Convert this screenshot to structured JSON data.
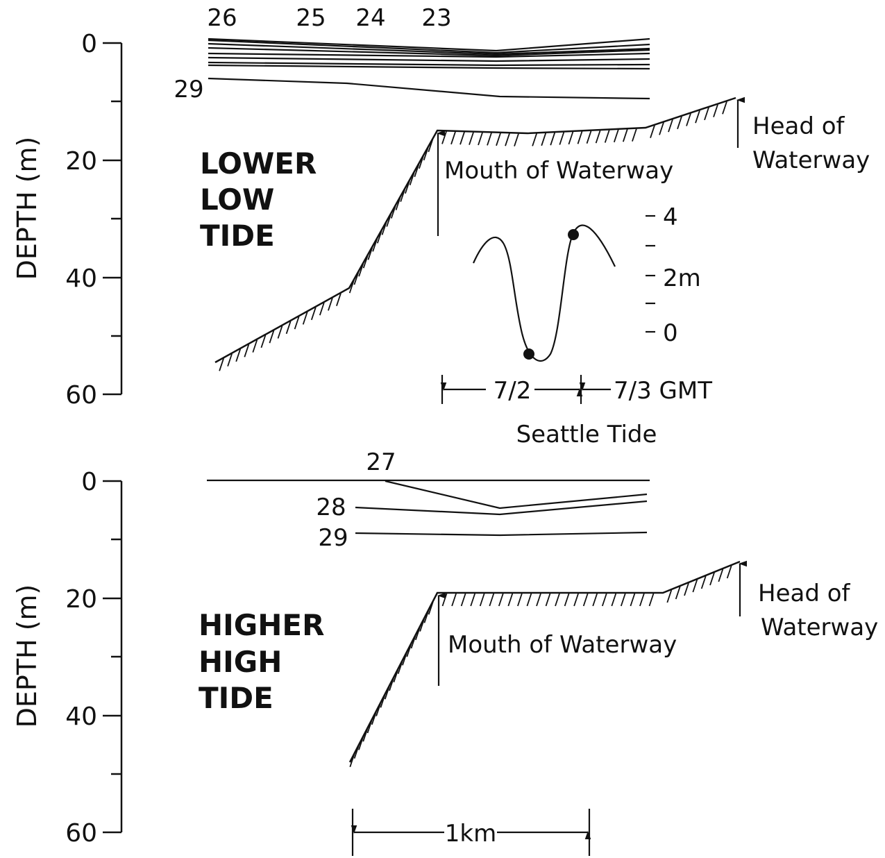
{
  "chart_data": [
    {
      "type": "line",
      "panel_label": "LOWER LOW TIDE",
      "panel_label_lines": [
        "LOWER",
        "LOW",
        "TIDE"
      ],
      "ylabel": "DEPTH (m)",
      "ylim": [
        0,
        60
      ],
      "yticks": [
        0,
        20,
        40,
        60
      ],
      "isohaline_labels": [
        "26",
        "25",
        "24",
        "23",
        "29"
      ],
      "bottom_profile": [
        {
          "x_km": -0.95,
          "depth_m": 54
        },
        {
          "x_km": -0.38,
          "depth_m": 41
        },
        {
          "x_km": 0.0,
          "depth_m": 15
        },
        {
          "x_km": 0.36,
          "depth_m": 15.5
        },
        {
          "x_km": 0.87,
          "depth_m": 14.5
        },
        {
          "x_km": 1.2,
          "depth_m": 9.5
        }
      ],
      "annotations": [
        "Mouth of Waterway",
        "Head of Waterway"
      ],
      "head_label_lines": [
        "Head of",
        "Waterway"
      ]
    },
    {
      "type": "line",
      "panel_label": "HIGHER HIGH TIDE",
      "panel_label_lines": [
        "HIGHER",
        "HIGH",
        "TIDE"
      ],
      "ylabel": "DEPTH (m)",
      "ylim": [
        0,
        60
      ],
      "yticks": [
        0,
        20,
        40,
        60
      ],
      "isohaline_labels": [
        "27",
        "28",
        "29"
      ],
      "bottom_profile": [
        {
          "x_km": -0.38,
          "depth_m": 48
        },
        {
          "x_km": 0.0,
          "depth_m": 19
        },
        {
          "x_km": 0.95,
          "depth_m": 19
        },
        {
          "x_km": 1.25,
          "depth_m": 14
        }
      ],
      "annotations": [
        "Mouth of Waterway",
        "Head of Waterway"
      ],
      "head_label_lines": [
        "Head of",
        "Waterway"
      ],
      "scale_bar": "1km"
    },
    {
      "type": "line",
      "title": "Seattle Tide",
      "ylim": [
        -0.8,
        4.2
      ],
      "yticks": [
        "4",
        "2m",
        "0"
      ],
      "x_labels": [
        "7/2",
        "7/3 GMT"
      ],
      "marked_points": [
        {
          "time_index": 0.32,
          "height_m": -0.4
        },
        {
          "time_index": 0.7,
          "height_m": 3.3
        }
      ]
    }
  ]
}
